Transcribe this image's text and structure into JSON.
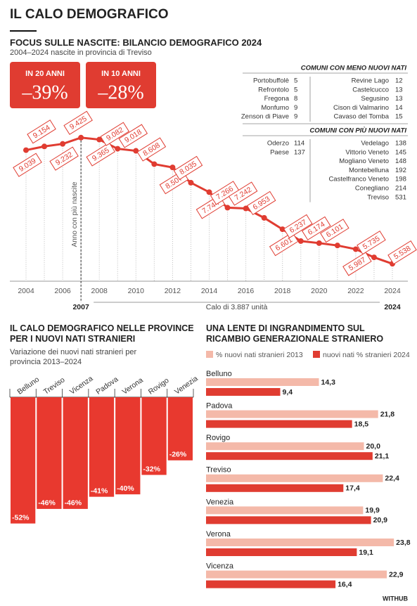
{
  "header": {
    "title": "IL CALO DEMOGRAFICO"
  },
  "focus": {
    "title": "FOCUS SULLE NASCITE: BILANCIO DEMOGRAFICO 2024",
    "subtitle": "2004–2024 nascite in provincia di Treviso",
    "badges": [
      {
        "label": "IN 20 ANNI",
        "value": "–39%"
      },
      {
        "label": "IN 10 ANNI",
        "value": "–28%"
      }
    ]
  },
  "tables": [
    {
      "title": "COMUNI CON MENO NUOVI NATI",
      "columns": [
        [
          [
            "Portobuffolè",
            "5"
          ],
          [
            "Refrontolo",
            "5"
          ],
          [
            "Fregona",
            "8"
          ],
          [
            "Monfumo",
            "9"
          ],
          [
            "Zenson di Piave",
            "9"
          ]
        ],
        [
          [
            "Revine Lago",
            "12"
          ],
          [
            "Castelcucco",
            "13"
          ],
          [
            "Segusino",
            "13"
          ],
          [
            "Cison di Valmarino",
            "14"
          ],
          [
            "Cavaso del Tomba",
            "15"
          ]
        ]
      ]
    },
    {
      "title": "COMUNI CON PIÙ NUOVI NATI",
      "columns": [
        [
          [
            "Oderzo",
            "114"
          ],
          [
            "Paese",
            "137"
          ]
        ],
        [
          [
            "Vedelago",
            "138"
          ],
          [
            "Vittorio Veneto",
            "145"
          ],
          [
            "Mogliano Veneto",
            "148"
          ],
          [
            "Montebelluna",
            "192"
          ],
          [
            "Castelfranco Veneto",
            "198"
          ],
          [
            "Conegliano",
            "214"
          ],
          [
            "Treviso",
            "531"
          ]
        ]
      ]
    }
  ],
  "chart_data": [
    {
      "type": "line",
      "x": [
        2004,
        2005,
        2006,
        2007,
        2008,
        2009,
        2010,
        2011,
        2012,
        2013,
        2014,
        2015,
        2016,
        2017,
        2018,
        2019,
        2020,
        2021,
        2022,
        2023,
        2024
      ],
      "values": [
        9039,
        9154,
        9232,
        9425,
        9365,
        9082,
        9018,
        8608,
        8507,
        8035,
        7744,
        7266,
        7242,
        6953,
        6601,
        6237,
        6174,
        6101,
        5987,
        5735,
        5538
      ],
      "value_labels": [
        "9.039",
        "9.154",
        "9.232",
        "9.425",
        "9.365",
        "9.082",
        "9.018",
        "8.608",
        "8.507",
        "8.035",
        "7.744",
        "7.266",
        "7.242",
        "6.953",
        "6.601",
        "6.237",
        "6.174",
        "6.101",
        "5.987",
        "5.735",
        "5.538"
      ],
      "color": "#e03c31",
      "xlim": [
        2004,
        2024
      ],
      "xticks": [
        2004,
        2006,
        2008,
        2010,
        2012,
        2014,
        2016,
        2018,
        2020,
        2022,
        2024
      ],
      "ylim": [
        5000,
        10200
      ],
      "annotations": {
        "peak": "Anno con più nascite",
        "start": "2007",
        "drop": "Calo di 3.887 unità",
        "end": "2024"
      }
    },
    {
      "type": "bar",
      "title": "IL CALO DEMOGRAFICO NELLE PROVINCE PER I NUOVI NATI STRANIERI",
      "subtitle": "Variazione dei nuovi nati stranieri per provincia 2013–2024",
      "categories": [
        "Belluno",
        "Treviso",
        "Vicenza",
        "Padova",
        "Verona",
        "Rovigo",
        "Venezia"
      ],
      "values": [
        -52,
        -46,
        -46,
        -41,
        -40,
        -32,
        -26
      ],
      "value_labels": [
        "-52%",
        "-46%",
        "-46%",
        "-41%",
        "-40%",
        "-32%",
        "-26%"
      ],
      "color": "#e8392f",
      "ylim": [
        -55,
        0
      ]
    },
    {
      "type": "hbar",
      "title": "UNA LENTE DI INGRANDIMENTO SUL RICAMBIO GENERAZIONALE STRANIERO",
      "categories": [
        "Belluno",
        "Padova",
        "Rovigo",
        "Treviso",
        "Venezia",
        "Verona",
        "Vicenza"
      ],
      "series": [
        {
          "name": "% nuovi nati stranieri 2013",
          "color": "#f4b9a9",
          "values": [
            14.3,
            21.8,
            20.0,
            22.4,
            19.9,
            23.8,
            22.9
          ],
          "value_labels": [
            "14,3",
            "21,8",
            "20,0",
            "22,4",
            "19,9",
            "23,8",
            "22,9"
          ]
        },
        {
          "name": "nuovi nati % stranieri 2024",
          "color": "#e03c31",
          "values": [
            9.4,
            18.5,
            21.1,
            17.4,
            20.9,
            19.1,
            16.4
          ],
          "value_labels": [
            "9,4",
            "18,5",
            "21,1",
            "17,4",
            "20,9",
            "19,1",
            "16,4"
          ]
        }
      ],
      "xlim": [
        0,
        24.5
      ]
    }
  ],
  "footer": {
    "credit": "WITHUB"
  }
}
